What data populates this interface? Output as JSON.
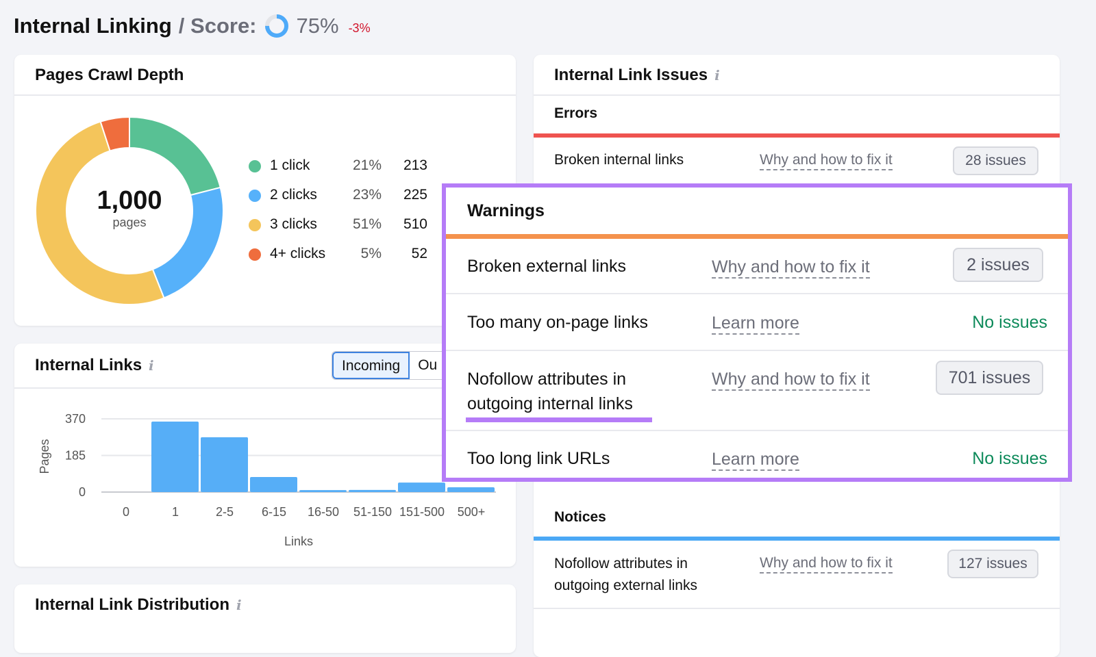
{
  "header": {
    "title": "Internal Linking",
    "separator": "/ Score:",
    "score": "75%",
    "score_value": 75,
    "delta": "-3%",
    "accent": "#4eaaf9",
    "delta_color": "#d1132a"
  },
  "crawl_depth": {
    "title": "Pages Crawl Depth",
    "total": "1,000",
    "total_label": "pages",
    "items": [
      {
        "label": "1 click",
        "pct": "21%",
        "count": "213",
        "value": 21,
        "color": "#58c194"
      },
      {
        "label": "2 clicks",
        "pct": "23%",
        "count": "225",
        "value": 23,
        "color": "#56b1fa"
      },
      {
        "label": "3 clicks",
        "pct": "51%",
        "count": "510",
        "value": 51,
        "color": "#f4c55b"
      },
      {
        "label": "4+ clicks",
        "pct": "5%",
        "count": "52",
        "value": 5,
        "color": "#ef6d3d"
      }
    ]
  },
  "internal_links": {
    "title": "Internal Links",
    "tabs": [
      "Incoming",
      "Ou"
    ],
    "active_tab": "Incoming"
  },
  "chart_data": {
    "type": "bar",
    "categories": [
      "0",
      "1",
      "2-5",
      "6-15",
      "16-50",
      "51-150",
      "151-500",
      "500+"
    ],
    "values": [
      0,
      356,
      277,
      76,
      10,
      11,
      48,
      24
    ],
    "xlabel": "Links",
    "ylabel": "Pages",
    "yticks": [
      "0",
      "185",
      "370"
    ],
    "ylim": [
      0,
      370
    ],
    "grid": true,
    "color": "#56aef7"
  },
  "distribution": {
    "title": "Internal Link Distribution"
  },
  "issues": {
    "title": "Internal Link Issues",
    "errors": {
      "title": "Errors",
      "color": "#ef5350",
      "rows": [
        {
          "label": "Broken internal links",
          "link": "Why and how to fix it",
          "status": "28 issues"
        }
      ]
    },
    "warnings": {
      "title": "Warnings",
      "color": "#f4924d",
      "highlight": "#b57cf7",
      "rows": [
        {
          "label": "Broken external links",
          "link": "Why and how to fix it",
          "status": "2 issues"
        },
        {
          "label": "Too many on-page links",
          "link": "Learn more",
          "status": "No issues"
        },
        {
          "label": "Nofollow attributes in outgoing internal links",
          "link": "Why and how to fix it",
          "status": "701 issues"
        },
        {
          "label": "Too long link URLs",
          "link": "Learn more",
          "status": "No issues"
        }
      ]
    },
    "notices": {
      "title": "Notices",
      "color": "#4ba8f5",
      "rows": [
        {
          "label": "Nofollow attributes in outgoing external links",
          "link": "Why and how to fix it",
          "status": "127 issues"
        }
      ]
    }
  }
}
